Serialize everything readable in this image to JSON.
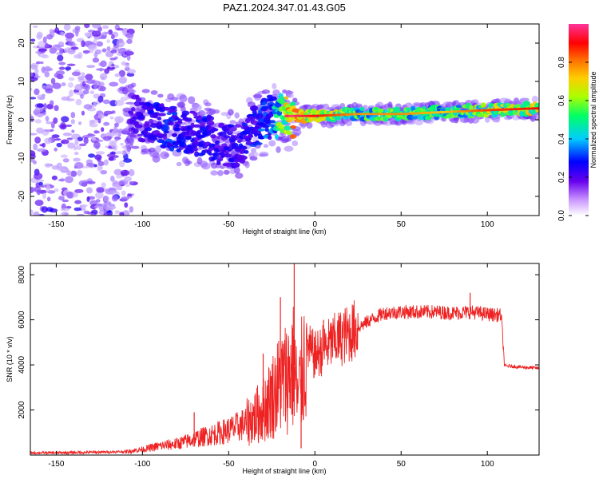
{
  "figure": {
    "title": "PAZ1.2024.347.01.43.G05"
  },
  "chart_data": [
    {
      "type": "heatmap",
      "xlabel": "Height of straight line (km)",
      "ylabel": "Frequency (Hz)",
      "xlim": [
        -165,
        130
      ],
      "ylim": [
        -25,
        25
      ],
      "xticks": [
        -150,
        -100,
        -50,
        0,
        50,
        100
      ],
      "yticks": [
        -20,
        -10,
        0,
        10,
        20
      ],
      "colorbar": {
        "label": "Normalized spectral amplitude",
        "range": [
          0,
          1
        ],
        "ticks": [
          0.0,
          0.2,
          0.4,
          0.6,
          0.8
        ],
        "colormap": [
          "#ffffff",
          "#9966ff",
          "#5500ee",
          "#0000ff",
          "#00ccff",
          "#00ff66",
          "#aaff00",
          "#ffcc00",
          "#ff6600",
          "#ff0000",
          "#ff3399"
        ]
      },
      "signal_track": [
        {
          "x": -165,
          "y": 3,
          "amp": 0.12
        },
        {
          "x": -105,
          "y": 1,
          "amp": 0.25
        },
        {
          "x": -95,
          "y": -1,
          "amp": 0.3
        },
        {
          "x": -85,
          "y": -2,
          "amp": 0.35
        },
        {
          "x": -75,
          "y": -3,
          "amp": 0.3
        },
        {
          "x": -65,
          "y": -4,
          "amp": 0.32
        },
        {
          "x": -55,
          "y": -6,
          "amp": 0.3
        },
        {
          "x": -45,
          "y": -7,
          "amp": 0.3
        },
        {
          "x": -35,
          "y": -2,
          "amp": 0.35
        },
        {
          "x": -25,
          "y": 1,
          "amp": 0.4
        },
        {
          "x": -15,
          "y": 1,
          "amp": 0.85
        },
        {
          "x": 0,
          "y": 1,
          "amp": 0.75
        },
        {
          "x": 25,
          "y": 1.5,
          "amp": 0.6
        },
        {
          "x": 50,
          "y": 1.5,
          "amp": 0.62
        },
        {
          "x": 75,
          "y": 2,
          "amp": 0.55
        },
        {
          "x": 100,
          "y": 2.5,
          "amp": 0.7
        },
        {
          "x": 130,
          "y": 3,
          "amp": 0.75
        }
      ]
    },
    {
      "type": "line",
      "xlabel": "Height of straight line (km)",
      "ylabel": "SNR (10 * v/v)",
      "xlim": [
        -165,
        130
      ],
      "ylim": [
        0,
        8500
      ],
      "xticks": [
        -150,
        -100,
        -50,
        0,
        50,
        100
      ],
      "yticks": [
        2000,
        4000,
        6000,
        8000
      ],
      "color": "#ee2222",
      "series": [
        {
          "x": [
            -165,
            -150,
            -130,
            -110,
            -100,
            -90,
            -80,
            -70,
            -60,
            -50,
            -40,
            -30,
            -25,
            -20,
            -15,
            -12,
            -10,
            -5,
            0,
            5,
            10,
            20,
            30,
            40,
            50,
            60,
            70,
            80,
            90,
            100,
            108,
            110,
            112,
            120,
            130
          ],
          "values": [
            100,
            100,
            120,
            150,
            250,
            400,
            500,
            700,
            900,
            1100,
            1400,
            2000,
            2600,
            3200,
            3600,
            4000,
            2400,
            4800,
            4400,
            4700,
            5000,
            5400,
            5900,
            6300,
            6350,
            6350,
            6350,
            6300,
            6350,
            6250,
            6200,
            3950,
            3950,
            3900,
            3850
          ],
          "spikes": [
            {
              "x": -70,
              "value": 1900
            },
            {
              "x": -30,
              "value": 4500
            },
            {
              "x": -20,
              "value": 7000
            },
            {
              "x": -12,
              "value": 8500
            },
            {
              "x": -8,
              "value": 300
            },
            {
              "x": 5,
              "value": 6000
            },
            {
              "x": 90,
              "value": 7200
            }
          ]
        }
      ]
    }
  ]
}
